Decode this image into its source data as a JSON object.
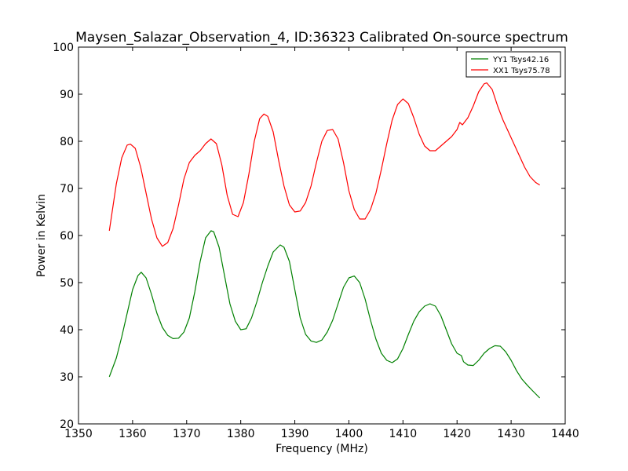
{
  "chart_data": {
    "type": "line",
    "title": "Maysen_Salazar_Observation_4, ID:36323 Calibrated On-source spectrum",
    "xlabel": "Frequency (MHz)",
    "ylabel": "Power in Kelvin",
    "xlim": [
      1350,
      1440
    ],
    "ylim": [
      20,
      100
    ],
    "xticks": [
      1350,
      1360,
      1370,
      1380,
      1390,
      1400,
      1410,
      1420,
      1430,
      1440
    ],
    "yticks": [
      20,
      30,
      40,
      50,
      60,
      70,
      80,
      90,
      100
    ],
    "grid": false,
    "legend_position": "top-right",
    "series": [
      {
        "name": "YY1 Tsys42.16",
        "color": "#008000",
        "points": [
          [
            1355.7,
            30.0
          ],
          [
            1357.0,
            34.0
          ],
          [
            1358.0,
            38.5
          ],
          [
            1359.0,
            43.5
          ],
          [
            1360.0,
            48.5
          ],
          [
            1361.0,
            51.5
          ],
          [
            1361.6,
            52.2
          ],
          [
            1362.5,
            51.0
          ],
          [
            1363.5,
            47.5
          ],
          [
            1364.5,
            43.5
          ],
          [
            1365.5,
            40.5
          ],
          [
            1366.5,
            38.8
          ],
          [
            1367.5,
            38.1
          ],
          [
            1368.5,
            38.2
          ],
          [
            1369.5,
            39.5
          ],
          [
            1370.5,
            42.5
          ],
          [
            1371.5,
            48.0
          ],
          [
            1372.5,
            54.5
          ],
          [
            1373.5,
            59.5
          ],
          [
            1374.5,
            61.0
          ],
          [
            1375.0,
            60.8
          ],
          [
            1376.0,
            57.5
          ],
          [
            1377.0,
            51.5
          ],
          [
            1378.0,
            45.5
          ],
          [
            1379.0,
            41.8
          ],
          [
            1380.0,
            40.0
          ],
          [
            1381.0,
            40.2
          ],
          [
            1382.0,
            42.5
          ],
          [
            1383.0,
            46.0
          ],
          [
            1384.0,
            50.0
          ],
          [
            1385.0,
            53.5
          ],
          [
            1386.0,
            56.5
          ],
          [
            1387.3,
            58.0
          ],
          [
            1388.0,
            57.5
          ],
          [
            1389.0,
            54.5
          ],
          [
            1390.0,
            48.5
          ],
          [
            1391.0,
            42.5
          ],
          [
            1392.0,
            39.0
          ],
          [
            1393.0,
            37.6
          ],
          [
            1394.0,
            37.3
          ],
          [
            1395.0,
            37.8
          ],
          [
            1396.0,
            39.5
          ],
          [
            1397.0,
            42.0
          ],
          [
            1398.0,
            45.5
          ],
          [
            1399.0,
            49.0
          ],
          [
            1400.0,
            51.0
          ],
          [
            1401.0,
            51.4
          ],
          [
            1402.0,
            50.0
          ],
          [
            1403.0,
            46.5
          ],
          [
            1404.0,
            42.0
          ],
          [
            1405.0,
            38.0
          ],
          [
            1406.0,
            35.0
          ],
          [
            1407.0,
            33.5
          ],
          [
            1408.0,
            33.0
          ],
          [
            1409.0,
            33.8
          ],
          [
            1410.0,
            36.0
          ],
          [
            1411.0,
            39.0
          ],
          [
            1412.0,
            41.8
          ],
          [
            1413.0,
            43.8
          ],
          [
            1414.0,
            45.0
          ],
          [
            1415.0,
            45.5
          ],
          [
            1416.0,
            45.0
          ],
          [
            1417.0,
            43.0
          ],
          [
            1418.0,
            40.0
          ],
          [
            1419.0,
            37.0
          ],
          [
            1420.0,
            35.0
          ],
          [
            1420.8,
            34.5
          ],
          [
            1421.2,
            33.2
          ],
          [
            1422.0,
            32.5
          ],
          [
            1423.0,
            32.4
          ],
          [
            1424.0,
            33.5
          ],
          [
            1425.0,
            35.0
          ],
          [
            1426.0,
            36.0
          ],
          [
            1427.0,
            36.6
          ],
          [
            1428.0,
            36.5
          ],
          [
            1429.0,
            35.3
          ],
          [
            1430.0,
            33.5
          ],
          [
            1431.0,
            31.3
          ],
          [
            1432.0,
            29.5
          ],
          [
            1433.0,
            28.2
          ],
          [
            1434.0,
            27.0
          ],
          [
            1435.3,
            25.5
          ]
        ]
      },
      {
        "name": "XX1 Tsys75.78",
        "color": "#ff0000",
        "points": [
          [
            1355.7,
            61.0
          ],
          [
            1357.0,
            71.0
          ],
          [
            1358.0,
            76.5
          ],
          [
            1359.0,
            79.2
          ],
          [
            1359.6,
            79.4
          ],
          [
            1360.5,
            78.5
          ],
          [
            1361.5,
            74.5
          ],
          [
            1362.5,
            69.0
          ],
          [
            1363.5,
            63.5
          ],
          [
            1364.5,
            59.5
          ],
          [
            1365.5,
            57.7
          ],
          [
            1366.5,
            58.5
          ],
          [
            1367.5,
            61.5
          ],
          [
            1368.5,
            66.5
          ],
          [
            1369.5,
            72.0
          ],
          [
            1370.5,
            75.5
          ],
          [
            1371.5,
            77.0
          ],
          [
            1372.5,
            78.0
          ],
          [
            1373.5,
            79.5
          ],
          [
            1374.5,
            80.5
          ],
          [
            1375.5,
            79.5
          ],
          [
            1376.5,
            75.0
          ],
          [
            1377.5,
            68.5
          ],
          [
            1378.5,
            64.5
          ],
          [
            1379.5,
            64.0
          ],
          [
            1380.5,
            67.0
          ],
          [
            1381.5,
            73.0
          ],
          [
            1382.5,
            80.0
          ],
          [
            1383.5,
            84.8
          ],
          [
            1384.3,
            85.8
          ],
          [
            1385.0,
            85.3
          ],
          [
            1386.0,
            82.0
          ],
          [
            1387.0,
            76.0
          ],
          [
            1388.0,
            70.5
          ],
          [
            1389.0,
            66.5
          ],
          [
            1390.0,
            65.0
          ],
          [
            1391.0,
            65.2
          ],
          [
            1392.0,
            67.0
          ],
          [
            1393.0,
            70.5
          ],
          [
            1394.0,
            75.5
          ],
          [
            1395.0,
            80.0
          ],
          [
            1396.0,
            82.3
          ],
          [
            1397.0,
            82.5
          ],
          [
            1398.0,
            80.5
          ],
          [
            1399.0,
            75.5
          ],
          [
            1400.0,
            69.5
          ],
          [
            1401.0,
            65.5
          ],
          [
            1402.0,
            63.5
          ],
          [
            1403.0,
            63.5
          ],
          [
            1404.0,
            65.5
          ],
          [
            1405.0,
            69.0
          ],
          [
            1406.0,
            74.0
          ],
          [
            1407.0,
            79.5
          ],
          [
            1408.0,
            84.5
          ],
          [
            1409.0,
            87.8
          ],
          [
            1410.0,
            89.0
          ],
          [
            1411.0,
            88.0
          ],
          [
            1412.0,
            85.0
          ],
          [
            1413.0,
            81.5
          ],
          [
            1414.0,
            79.0
          ],
          [
            1415.0,
            78.0
          ],
          [
            1416.0,
            78.0
          ],
          [
            1417.0,
            79.0
          ],
          [
            1418.0,
            80.0
          ],
          [
            1419.0,
            81.0
          ],
          [
            1420.0,
            82.5
          ],
          [
            1420.5,
            84.0
          ],
          [
            1421.0,
            83.5
          ],
          [
            1422.0,
            85.0
          ],
          [
            1423.0,
            87.5
          ],
          [
            1424.0,
            90.5
          ],
          [
            1425.0,
            92.2
          ],
          [
            1425.5,
            92.4
          ],
          [
            1426.5,
            91.0
          ],
          [
            1427.5,
            87.5
          ],
          [
            1428.5,
            84.5
          ],
          [
            1429.5,
            82.0
          ],
          [
            1430.5,
            79.5
          ],
          [
            1431.5,
            77.0
          ],
          [
            1432.5,
            74.5
          ],
          [
            1433.5,
            72.5
          ],
          [
            1434.5,
            71.3
          ],
          [
            1435.3,
            70.7
          ]
        ]
      }
    ]
  }
}
